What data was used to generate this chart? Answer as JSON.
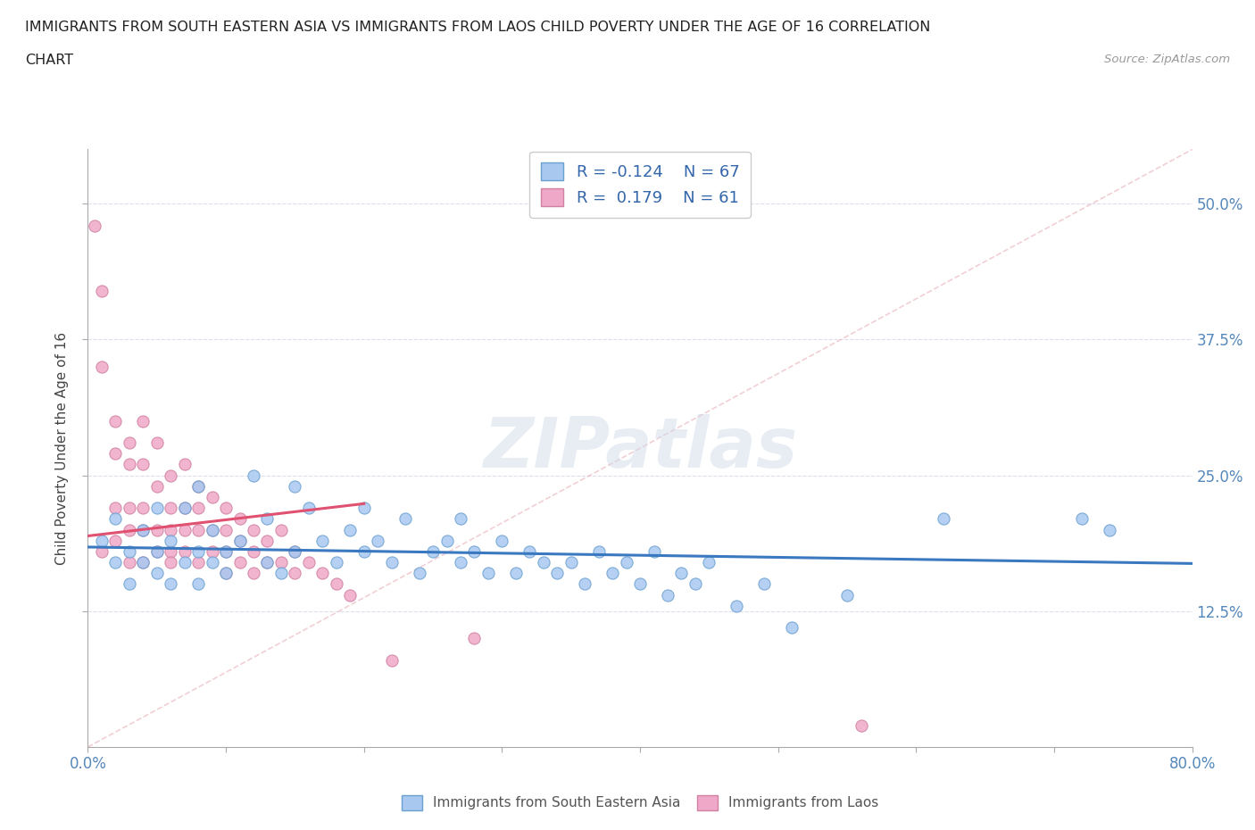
{
  "title_line1": "IMMIGRANTS FROM SOUTH EASTERN ASIA VS IMMIGRANTS FROM LAOS CHILD POVERTY UNDER THE AGE OF 16 CORRELATION",
  "title_line2": "CHART",
  "source_text": "Source: ZipAtlas.com",
  "ylabel": "Child Poverty Under the Age of 16",
  "xlim": [
    0.0,
    0.8
  ],
  "ylim": [
    0.0,
    0.55
  ],
  "yticks_right_labels": [
    "12.5%",
    "25.0%",
    "37.5%",
    "50.0%"
  ],
  "blue_color": "#a8c8f0",
  "pink_color": "#f0a8c8",
  "blue_edge": "#6aa0d0",
  "pink_edge": "#d080a0",
  "blue_line_color": "#3a78c0",
  "pink_line_color": "#e05070",
  "R_blue": -0.124,
  "N_blue": 67,
  "R_pink": 0.179,
  "N_pink": 61,
  "legend_label_blue": "Immigrants from South Eastern Asia",
  "legend_label_pink": "Immigrants from Laos",
  "watermark": "ZIPatlas",
  "blue_x": [
    0.01,
    0.02,
    0.02,
    0.03,
    0.03,
    0.04,
    0.04,
    0.05,
    0.05,
    0.05,
    0.06,
    0.06,
    0.07,
    0.07,
    0.08,
    0.08,
    0.08,
    0.09,
    0.09,
    0.1,
    0.1,
    0.11,
    0.12,
    0.13,
    0.13,
    0.14,
    0.15,
    0.15,
    0.16,
    0.17,
    0.18,
    0.19,
    0.2,
    0.2,
    0.21,
    0.22,
    0.23,
    0.24,
    0.25,
    0.26,
    0.27,
    0.27,
    0.28,
    0.29,
    0.3,
    0.31,
    0.32,
    0.33,
    0.34,
    0.35,
    0.36,
    0.37,
    0.38,
    0.39,
    0.4,
    0.41,
    0.42,
    0.43,
    0.44,
    0.45,
    0.47,
    0.49,
    0.51,
    0.55,
    0.62,
    0.72,
    0.74
  ],
  "blue_y": [
    0.19,
    0.17,
    0.21,
    0.18,
    0.15,
    0.2,
    0.17,
    0.22,
    0.18,
    0.16,
    0.19,
    0.15,
    0.17,
    0.22,
    0.18,
    0.15,
    0.24,
    0.17,
    0.2,
    0.18,
    0.16,
    0.19,
    0.25,
    0.17,
    0.21,
    0.16,
    0.24,
    0.18,
    0.22,
    0.19,
    0.17,
    0.2,
    0.22,
    0.18,
    0.19,
    0.17,
    0.21,
    0.16,
    0.18,
    0.19,
    0.17,
    0.21,
    0.18,
    0.16,
    0.19,
    0.16,
    0.18,
    0.17,
    0.16,
    0.17,
    0.15,
    0.18,
    0.16,
    0.17,
    0.15,
    0.18,
    0.14,
    0.16,
    0.15,
    0.17,
    0.13,
    0.15,
    0.11,
    0.14,
    0.21,
    0.21,
    0.2
  ],
  "pink_x": [
    0.005,
    0.01,
    0.01,
    0.01,
    0.02,
    0.02,
    0.02,
    0.02,
    0.03,
    0.03,
    0.03,
    0.03,
    0.03,
    0.04,
    0.04,
    0.04,
    0.04,
    0.04,
    0.05,
    0.05,
    0.05,
    0.05,
    0.06,
    0.06,
    0.06,
    0.06,
    0.06,
    0.07,
    0.07,
    0.07,
    0.07,
    0.08,
    0.08,
    0.08,
    0.08,
    0.09,
    0.09,
    0.09,
    0.1,
    0.1,
    0.1,
    0.1,
    0.11,
    0.11,
    0.11,
    0.12,
    0.12,
    0.12,
    0.13,
    0.13,
    0.14,
    0.14,
    0.15,
    0.15,
    0.16,
    0.17,
    0.18,
    0.19,
    0.22,
    0.28,
    0.56
  ],
  "pink_y": [
    0.48,
    0.42,
    0.35,
    0.18,
    0.3,
    0.27,
    0.22,
    0.19,
    0.28,
    0.26,
    0.22,
    0.2,
    0.17,
    0.3,
    0.26,
    0.22,
    0.2,
    0.17,
    0.28,
    0.24,
    0.2,
    0.18,
    0.25,
    0.22,
    0.2,
    0.18,
    0.17,
    0.26,
    0.22,
    0.2,
    0.18,
    0.24,
    0.22,
    0.2,
    0.17,
    0.23,
    0.2,
    0.18,
    0.22,
    0.2,
    0.18,
    0.16,
    0.21,
    0.19,
    0.17,
    0.2,
    0.18,
    0.16,
    0.19,
    0.17,
    0.2,
    0.17,
    0.18,
    0.16,
    0.17,
    0.16,
    0.15,
    0.14,
    0.08,
    0.1,
    0.02
  ]
}
